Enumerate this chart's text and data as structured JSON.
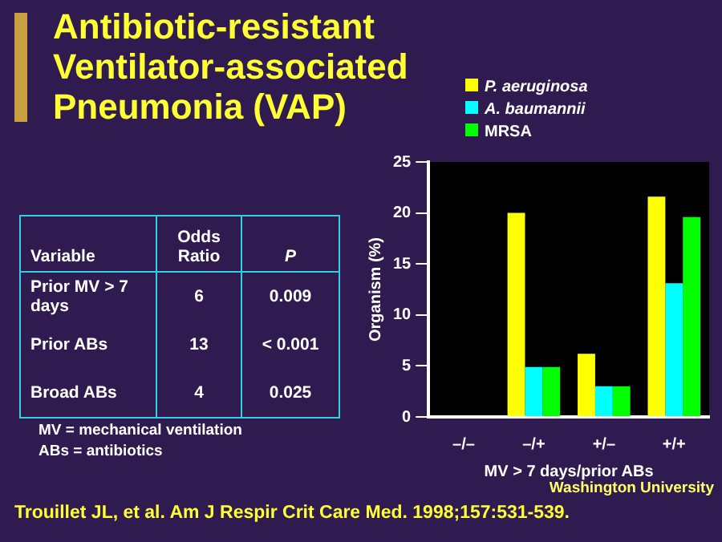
{
  "chart_data": {
    "type": "bar",
    "title": "Antibiotic-resistant Ventilator-associated Pneumonia (VAP)",
    "xlabel": "MV > 7 days/prior ABs",
    "ylabel": "Organism (%)",
    "categories": [
      "–/–",
      "–/+",
      "+/–",
      "+/+"
    ],
    "series": [
      {
        "name": "P. aeruginosa",
        "color": "#ffff00",
        "values": [
          0,
          20,
          6.2,
          21.6
        ]
      },
      {
        "name": "A. baumannii",
        "color": "#00ffff",
        "values": [
          0,
          4.9,
          3,
          13.1
        ]
      },
      {
        "name": "MRSA",
        "color": "#00ff00",
        "values": [
          0,
          4.9,
          3,
          19.6
        ]
      }
    ],
    "ylim": [
      0,
      25
    ],
    "yticks": [
      0,
      5,
      10,
      15,
      20,
      25
    ],
    "grid": false,
    "legend": "top",
    "annotations": [
      "Variable",
      "Odds Ratio",
      "P",
      "Prior MV > 7 days",
      "6",
      "0.009",
      "Prior ABs",
      "13",
      "< 0.001",
      "Broad ABs",
      "4",
      "0.025",
      "MV = mechanical ventilation",
      "ABs = antibiotics",
      "Trouillet JL, et al. Am J Respir Crit Care Med. 1998;157:531-539.",
      "Washington University"
    ]
  }
}
